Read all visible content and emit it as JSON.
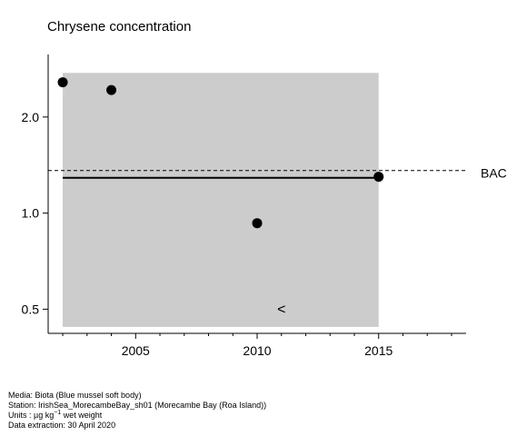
{
  "chart_data": {
    "type": "scatter",
    "title": "Chrysene concentration",
    "xlabel": "",
    "ylabel": "",
    "log_y": true,
    "xlim": [
      2001.4,
      2018.6
    ],
    "ylim": [
      0.42,
      3.14
    ],
    "x_ticks": [
      {
        "value": 2005,
        "label": "2005"
      },
      {
        "value": 2010,
        "label": "2010"
      },
      {
        "value": 2015,
        "label": "2015"
      }
    ],
    "y_ticks": [
      {
        "value": 0.5,
        "label": "0.5"
      },
      {
        "value": 1.0,
        "label": "1.0"
      },
      {
        "value": 2.0,
        "label": "2.0"
      }
    ],
    "shaded_band": {
      "x": [
        2002,
        2015
      ],
      "y": [
        0.44,
        2.75
      ]
    },
    "points": [
      {
        "x": 2002,
        "y": 2.57
      },
      {
        "x": 2004,
        "y": 2.43
      },
      {
        "x": 2010,
        "y": 0.93
      },
      {
        "x": 2015,
        "y": 1.3
      }
    ],
    "less_than_markers": [
      {
        "x": 2011,
        "y": 0.5,
        "label": "<"
      }
    ],
    "trend_line": {
      "x": [
        2002,
        2015
      ],
      "y": [
        1.29,
        1.29
      ]
    },
    "reference_line": {
      "name": "BAC",
      "y": 1.36,
      "style": "dashed"
    },
    "grid": false,
    "colors": {
      "band": "#cccccc",
      "marker": "#000000",
      "line": "#000000"
    }
  },
  "footer": {
    "media": "Media: Biota (Blue mussel soft body)",
    "station": "Station: IrishSea_MorecambeBay_sh01 (Morecambe Bay (Roa Island))",
    "units_prefix": "Units : µg kg",
    "units_exponent": "−1",
    "units_suffix": " wet weight",
    "extraction": "Data extraction: 30 April 2020"
  }
}
